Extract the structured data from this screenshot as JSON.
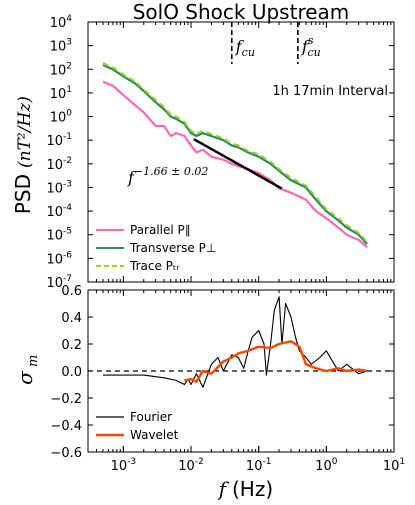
{
  "chart_data": [
    {
      "type": "line",
      "title": "SolO Shock Upstream",
      "ylabel_main": "PSD",
      "ylabel_math": "(nT²/Hz)",
      "xscale": "log",
      "yscale": "log",
      "xlim": [
        0.0003,
        10
      ],
      "ylim": [
        1e-07,
        10000.0
      ],
      "y_ticks": [
        {
          "v": 10000.0,
          "label": "10",
          "exp": "4"
        },
        {
          "v": 1000.0,
          "label": "10",
          "exp": "3"
        },
        {
          "v": 100.0,
          "label": "10",
          "exp": "2"
        },
        {
          "v": 10.0,
          "label": "10",
          "exp": "1"
        },
        {
          "v": 1.0,
          "label": "10",
          "exp": "0"
        },
        {
          "v": 0.1,
          "label": "10",
          "exp": "-1"
        },
        {
          "v": 0.01,
          "label": "10",
          "exp": "-2"
        },
        {
          "v": 0.001,
          "label": "10",
          "exp": "-3"
        },
        {
          "v": 0.0001,
          "label": "10",
          "exp": "-4"
        },
        {
          "v": 1e-05,
          "label": "10",
          "exp": "-5"
        },
        {
          "v": 1e-06,
          "label": "10",
          "exp": "-6"
        },
        {
          "v": 1e-07,
          "label": "10",
          "exp": "-7"
        }
      ],
      "annotation_interval": "1h 17min Interval",
      "vlines": [
        {
          "x": 0.04,
          "label": "f",
          "sub": "cu",
          "sup": ""
        },
        {
          "x": 0.38,
          "label": "f",
          "sub": "cu",
          "sup": "s"
        }
      ],
      "fit": {
        "label": "f",
        "exponent": "−1.66 ± 0.02",
        "x": [
          0.011,
          0.22
        ],
        "y": [
          0.11,
          0.0009
        ]
      },
      "legend_position": "lower-left",
      "series": [
        {
          "name": "Parallel P∥",
          "color": "#ff69b4",
          "style": "solid",
          "x": [
            0.0005,
            0.0007,
            0.001,
            0.0015,
            0.002,
            0.003,
            0.004,
            0.005,
            0.006,
            0.008,
            0.01,
            0.012,
            0.015,
            0.02,
            0.03,
            0.04,
            0.05,
            0.07,
            0.1,
            0.15,
            0.2,
            0.3,
            0.5,
            0.7,
            1,
            1.5,
            2,
            3,
            4
          ],
          "y": [
            30,
            20,
            8,
            3,
            1.5,
            0.4,
            0.4,
            0.15,
            0.2,
            0.15,
            0.06,
            0.03,
            0.04,
            0.02,
            0.015,
            0.01,
            0.008,
            0.006,
            0.004,
            0.002,
            0.0009,
            0.0006,
            0.0003,
            0.0001,
            5e-05,
            2e-05,
            1e-05,
            6e-06,
            3e-06
          ]
        },
        {
          "name": "Transverse P⊥",
          "color": "#2e8b57",
          "style": "solid",
          "x": [
            0.0005,
            0.0007,
            0.001,
            0.0015,
            0.002,
            0.003,
            0.004,
            0.005,
            0.006,
            0.008,
            0.01,
            0.012,
            0.015,
            0.02,
            0.03,
            0.04,
            0.05,
            0.07,
            0.1,
            0.15,
            0.2,
            0.3,
            0.5,
            0.7,
            1,
            1.5,
            2,
            3,
            4
          ],
          "y": [
            150,
            100,
            50,
            25,
            12,
            4,
            2,
            1,
            0.8,
            0.5,
            0.2,
            0.15,
            0.2,
            0.15,
            0.1,
            0.06,
            0.05,
            0.03,
            0.02,
            0.01,
            0.005,
            0.002,
            0.001,
            0.0003,
            0.0001,
            4e-05,
            2e-05,
            1e-05,
            4e-06
          ]
        },
        {
          "name": "Trace Pₜᵣ",
          "color": "#9acd32",
          "style": "dashed",
          "x": [
            0.0005,
            0.0007,
            0.001,
            0.0015,
            0.002,
            0.003,
            0.004,
            0.005,
            0.006,
            0.008,
            0.01,
            0.012,
            0.015,
            0.02,
            0.03,
            0.04,
            0.05,
            0.07,
            0.1,
            0.15,
            0.2,
            0.3,
            0.5,
            0.7,
            1,
            1.5,
            2,
            3,
            4
          ],
          "y": [
            180,
            120,
            60,
            30,
            14,
            5,
            2.5,
            1.2,
            1,
            0.6,
            0.25,
            0.18,
            0.25,
            0.18,
            0.12,
            0.07,
            0.06,
            0.035,
            0.025,
            0.012,
            0.006,
            0.0025,
            0.0012,
            0.0004,
            0.00012,
            5e-05,
            2.5e-05,
            1.2e-05,
            5e-06
          ]
        }
      ]
    },
    {
      "type": "line",
      "ylabel": "σ",
      "ylabel_sub": "m",
      "xlabel_math": "f",
      "xlabel_unit": "(Hz)",
      "xscale": "log",
      "xlim": [
        0.0003,
        10
      ],
      "ylim": [
        -0.6,
        0.6
      ],
      "y_ticks": [
        "0.6",
        "0.4",
        "0.2",
        "0.0",
        "−0.2",
        "−0.4",
        "−0.6"
      ],
      "x_ticks": [
        {
          "v": 0.001,
          "label": "10",
          "exp": "-3"
        },
        {
          "v": 0.01,
          "label": "10",
          "exp": "-2"
        },
        {
          "v": 0.1,
          "label": "10",
          "exp": "-1"
        },
        {
          "v": 1,
          "label": "10",
          "exp": "0"
        },
        {
          "v": 10,
          "label": "10",
          "exp": "1"
        }
      ],
      "hline": 0.0,
      "legend_position": "lower-left",
      "series": [
        {
          "name": "Fourier",
          "color": "#000000",
          "x": [
            0.0005,
            0.001,
            0.002,
            0.004,
            0.006,
            0.008,
            0.009,
            0.01,
            0.012,
            0.015,
            0.02,
            0.025,
            0.03,
            0.04,
            0.05,
            0.06,
            0.07,
            0.08,
            0.1,
            0.12,
            0.13,
            0.15,
            0.17,
            0.2,
            0.22,
            0.25,
            0.3,
            0.35,
            0.4,
            0.5,
            0.6,
            0.8,
            1,
            1.5,
            2,
            3,
            4
          ],
          "y": [
            -0.03,
            -0.03,
            -0.03,
            -0.05,
            -0.07,
            -0.1,
            -0.06,
            -0.1,
            -0.02,
            -0.12,
            0.05,
            0.1,
            0.0,
            0.12,
            0.1,
            0.02,
            0.15,
            0.25,
            0.3,
            0.2,
            -0.03,
            0.2,
            0.45,
            0.55,
            0.2,
            0.5,
            0.4,
            0.25,
            0.15,
            0.1,
            0.05,
            0.1,
            0.15,
            0.0,
            0.05,
            -0.02,
            0.0
          ]
        },
        {
          "name": "Wavelet",
          "color": "#ff4500",
          "x": [
            0.008,
            0.01,
            0.012,
            0.015,
            0.02,
            0.03,
            0.04,
            0.05,
            0.07,
            0.1,
            0.15,
            0.2,
            0.3,
            0.4,
            0.5,
            0.7,
            1,
            1.5,
            2,
            3,
            4
          ],
          "y": [
            -0.07,
            -0.06,
            -0.08,
            0.0,
            -0.02,
            0.07,
            0.1,
            0.13,
            0.15,
            0.18,
            0.17,
            0.2,
            0.22,
            0.18,
            0.05,
            0.02,
            0.0,
            0.02,
            0.0,
            0.01,
            0.0
          ]
        }
      ]
    }
  ]
}
